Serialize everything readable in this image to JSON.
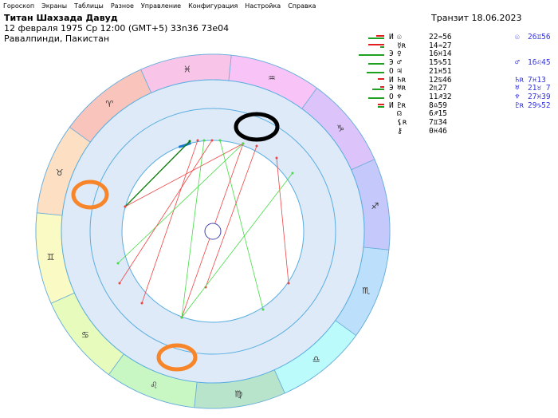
{
  "menu": [
    "Гороскоп",
    "Экраны",
    "Таблицы",
    "Разное",
    "Управление",
    "Конфигурация",
    "Настройка",
    "Справка"
  ],
  "header": {
    "name": "Титан Шахзада Давуд",
    "datetime": "12 февраля 1975  Ср  12:00 (GMT+5) 33n36  73e04",
    "place": "Равалпинди, Пакистан"
  },
  "transit_title": "Транзит 18.06.2023",
  "natal_table": [
    {
      "mark": "И",
      "planet": "☉",
      "pos": "22♒56",
      "green": 20,
      "red": 10
    },
    {
      "mark": "",
      "planet": "☿ʀ",
      "pos": "14♒27",
      "green": 5,
      "red": 20
    },
    {
      "mark": "Э",
      "planet": "♀",
      "pos": "16♓14",
      "green": 32,
      "red": 0
    },
    {
      "mark": "Э",
      "planet": "♂",
      "pos": "15♑51",
      "green": 20,
      "red": 0
    },
    {
      "mark": "О",
      "planet": "♃",
      "pos": "21♓51",
      "green": 22,
      "red": 0
    },
    {
      "mark": "И",
      "planet": "♄ʀ",
      "pos": "12♋46",
      "green": 0,
      "red": 8
    },
    {
      "mark": "Э",
      "planet": "♅ʀ",
      "pos": "2♏27",
      "green": 15,
      "red": 5
    },
    {
      "mark": "О",
      "planet": "♆",
      "pos": "11♐32",
      "green": 20,
      "red": 0
    },
    {
      "mark": "И",
      "planet": "♇ʀ",
      "pos": "8♎59",
      "green": 8,
      "red": 8
    },
    {
      "mark": "",
      "planet": "☊",
      "pos": "6♐15",
      "green": 0,
      "red": 0
    },
    {
      "mark": "",
      "planet": "⚸ʀ",
      "pos": "7♊34",
      "green": 0,
      "red": 0
    },
    {
      "mark": "",
      "planet": "⚷",
      "pos": "0♓46",
      "green": 0,
      "red": 0
    }
  ],
  "transit_table": [
    {
      "planet": "☉",
      "pos": "26♊56",
      "row": 0
    },
    {
      "planet": "♂",
      "pos": "16♌45",
      "row": 3
    },
    {
      "planet": "♄ʀ",
      "pos": "7♓13",
      "row": 5
    },
    {
      "planet": "♅",
      "pos": "21♉ 7",
      "row": 6
    },
    {
      "planet": "♆",
      "pos": "27♓39",
      "row": 7
    },
    {
      "planet": "♇ʀ",
      "pos": "29♑52",
      "row": 8
    }
  ],
  "zodiac": [
    {
      "sign": "♈",
      "color": "#f8c4bc"
    },
    {
      "sign": "♉",
      "color": "#fde0c4"
    },
    {
      "sign": "♊",
      "color": "#fafbc4"
    },
    {
      "sign": "♋",
      "color": "#e6fbbc"
    },
    {
      "sign": "♌",
      "color": "#c8f7c4"
    },
    {
      "sign": "♍",
      "color": "#b8e4cc"
    },
    {
      "sign": "♎",
      "color": "#bcfbfb"
    },
    {
      "sign": "♏",
      "color": "#bce0fb"
    },
    {
      "sign": "♐",
      "color": "#c4c8fb"
    },
    {
      "sign": "♑",
      "color": "#dcc4fb"
    },
    {
      "sign": "♒",
      "color": "#f8c4f8"
    },
    {
      "sign": "♓",
      "color": "#f8c4e8"
    }
  ],
  "chart_labels": {
    "natal": [
      "♃ 21°51'",
      "♀ 16°14'",
      "⚷ 0°46'",
      "☉ 22°56'",
      "☿ʀ 14°27'",
      "♂ 15°51'",
      "♆ 11°32'",
      "☊ 6°15'",
      "♅ʀ 2°27'",
      "♇ʀ 8°59'",
      "♄ʀ 12°46'",
      "⚸ʀ 7°34'"
    ],
    "transit": [
      "♄ʀ 7°13'",
      "♆ 27°39'",
      "♇ʀ 29°52'",
      "♅ 21°07'",
      "☉ 26°56'",
      "♂ 16°45'"
    ]
  },
  "colors": {
    "transit": "#3333cc",
    "ring": "#deeaf8",
    "ring_line": "#5aaee0",
    "aspect_green": "#44dd44",
    "aspect_red": "#ee4444",
    "highlight_orange": "#f7852a",
    "highlight_black": "#000000"
  }
}
